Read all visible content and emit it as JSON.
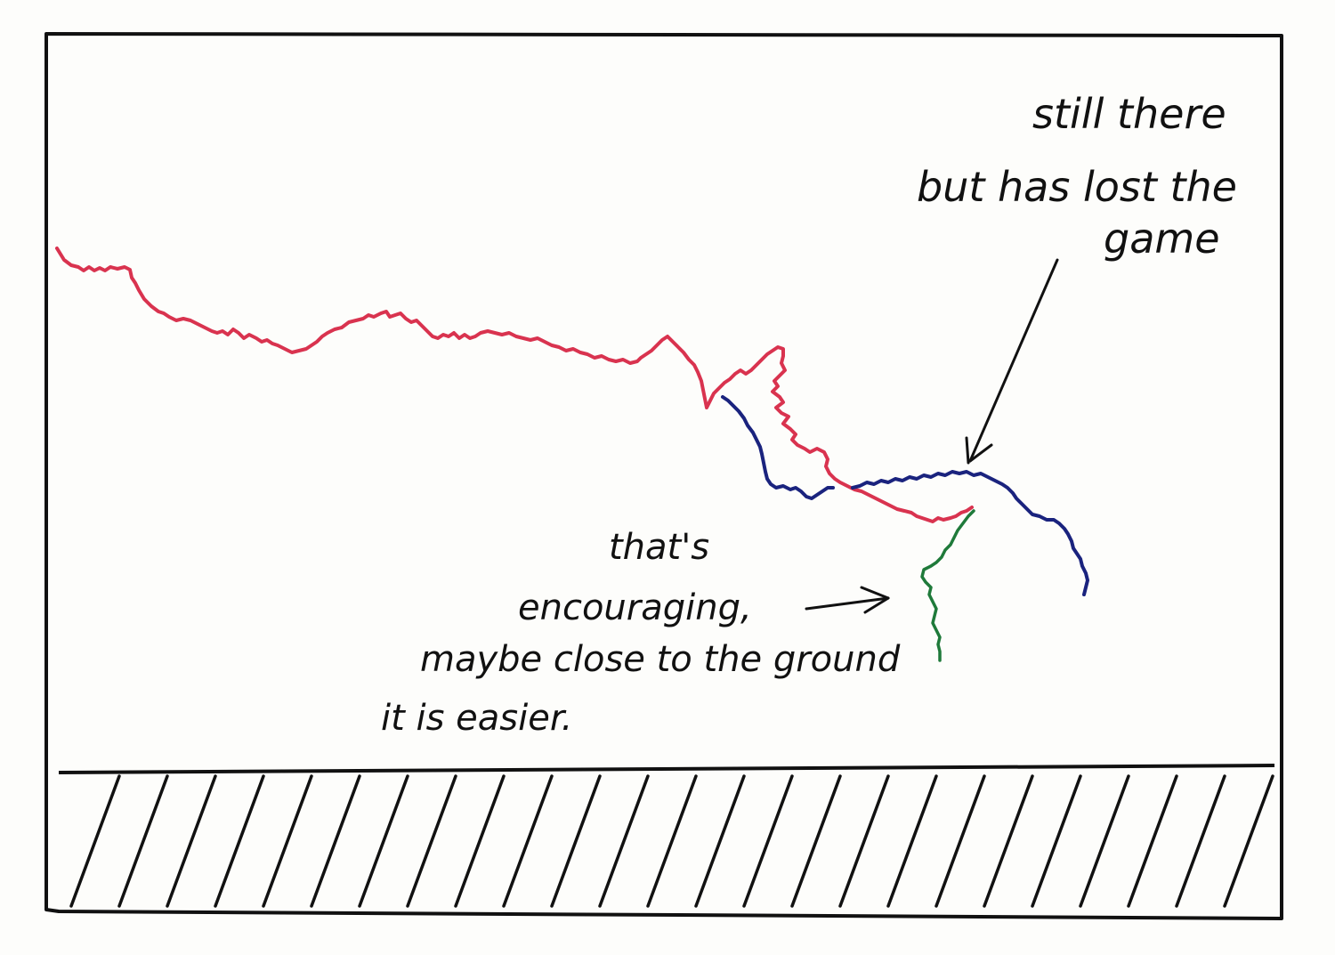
{
  "annotations": {
    "top": [
      "still there",
      "but has lost the",
      "game"
    ],
    "bottom": [
      "that's",
      "encouraging,",
      "maybe close to the ground",
      "it is easier."
    ]
  },
  "colors": {
    "ink": "#111111",
    "paper": "#fdfdfb",
    "red_path": "#d9334f",
    "blue_path": "#1a237e",
    "green_path": "#1f7a3a"
  }
}
